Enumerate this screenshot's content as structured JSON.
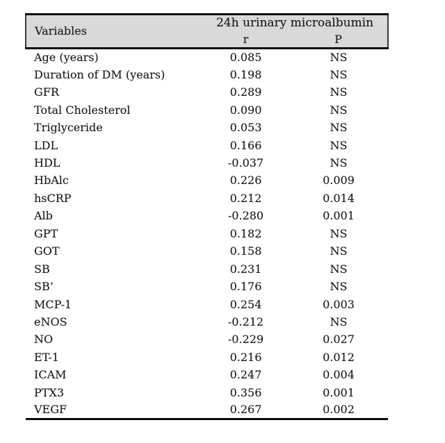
{
  "colors": {
    "header_bg": "#d9d9d9",
    "rule_color": "#0a0a0a",
    "text_color": "#1a1a1a"
  },
  "table": {
    "header": {
      "variables": "Variables",
      "group": "24h urinary microalbumin",
      "col_r": "r",
      "col_p": "P"
    },
    "rows": [
      {
        "variable": "Age (years)",
        "r": "0.085",
        "p": "NS"
      },
      {
        "variable": "Duration of DM (years)",
        "r": "0.198",
        "p": "NS"
      },
      {
        "variable": "GFR",
        "r": "0.289",
        "p": "NS"
      },
      {
        "variable": "Total Cholesterol",
        "r": "0.090",
        "p": "NS"
      },
      {
        "variable": "Triglyceride",
        "r": "0.053",
        "p": "NS"
      },
      {
        "variable": "LDL",
        "r": "0.166",
        "p": "NS"
      },
      {
        "variable": "HDL",
        "r": "-0.037",
        "p": "NS"
      },
      {
        "variable": "HbAlc",
        "r": "0.226",
        "p": "0.009"
      },
      {
        "variable": "hsCRP",
        "r": "0.212",
        "p": "0.014"
      },
      {
        "variable": "Alb",
        "r": "-0.280",
        "p": "0.001"
      },
      {
        "variable": "GPT",
        "r": "0.182",
        "p": "NS"
      },
      {
        "variable": "GOT",
        "r": "0.158",
        "p": "NS"
      },
      {
        "variable": "SB",
        "r": "0.231",
        "p": "NS"
      },
      {
        "variable": "SB’",
        "r": "0.176",
        "p": "NS"
      },
      {
        "variable": "MCP-1",
        "r": "0.254",
        "p": "0.003"
      },
      {
        "variable": "eNOS",
        "r": "-0.212",
        "p": "NS"
      },
      {
        "variable": "NO",
        "r": "-0.229",
        "p": "0.027"
      },
      {
        "variable": "ET-1",
        "r": "0.216",
        "p": "0.012"
      },
      {
        "variable": "ICAM",
        "r": "0.247",
        "p": "0.004"
      },
      {
        "variable": "PTX3",
        "r": "0.356",
        "p": "0.001"
      },
      {
        "variable": "VEGF",
        "r": "0.267",
        "p": "0.002"
      }
    ]
  },
  "chart_data": {
    "type": "table",
    "title": "24h urinary microalbumin",
    "columns": [
      "Variables",
      "r",
      "P"
    ],
    "rows": [
      [
        "Age (years)",
        0.085,
        "NS"
      ],
      [
        "Duration of DM (years)",
        0.198,
        "NS"
      ],
      [
        "GFR",
        0.289,
        "NS"
      ],
      [
        "Total Cholesterol",
        0.09,
        "NS"
      ],
      [
        "Triglyceride",
        0.053,
        "NS"
      ],
      [
        "LDL",
        0.166,
        "NS"
      ],
      [
        "HDL",
        -0.037,
        "NS"
      ],
      [
        "HbAlc",
        0.226,
        0.009
      ],
      [
        "hsCRP",
        0.212,
        0.014
      ],
      [
        "Alb",
        -0.28,
        0.001
      ],
      [
        "GPT",
        0.182,
        "NS"
      ],
      [
        "GOT",
        0.158,
        "NS"
      ],
      [
        "SB",
        0.231,
        "NS"
      ],
      [
        "SB’",
        0.176,
        "NS"
      ],
      [
        "MCP-1",
        0.254,
        0.003
      ],
      [
        "eNOS",
        -0.212,
        "NS"
      ],
      [
        "NO",
        -0.229,
        0.027
      ],
      [
        "ET-1",
        0.216,
        0.012
      ],
      [
        "ICAM",
        0.247,
        0.004
      ],
      [
        "PTX3",
        0.356,
        0.001
      ],
      [
        "VEGF",
        0.267,
        0.002
      ]
    ]
  }
}
